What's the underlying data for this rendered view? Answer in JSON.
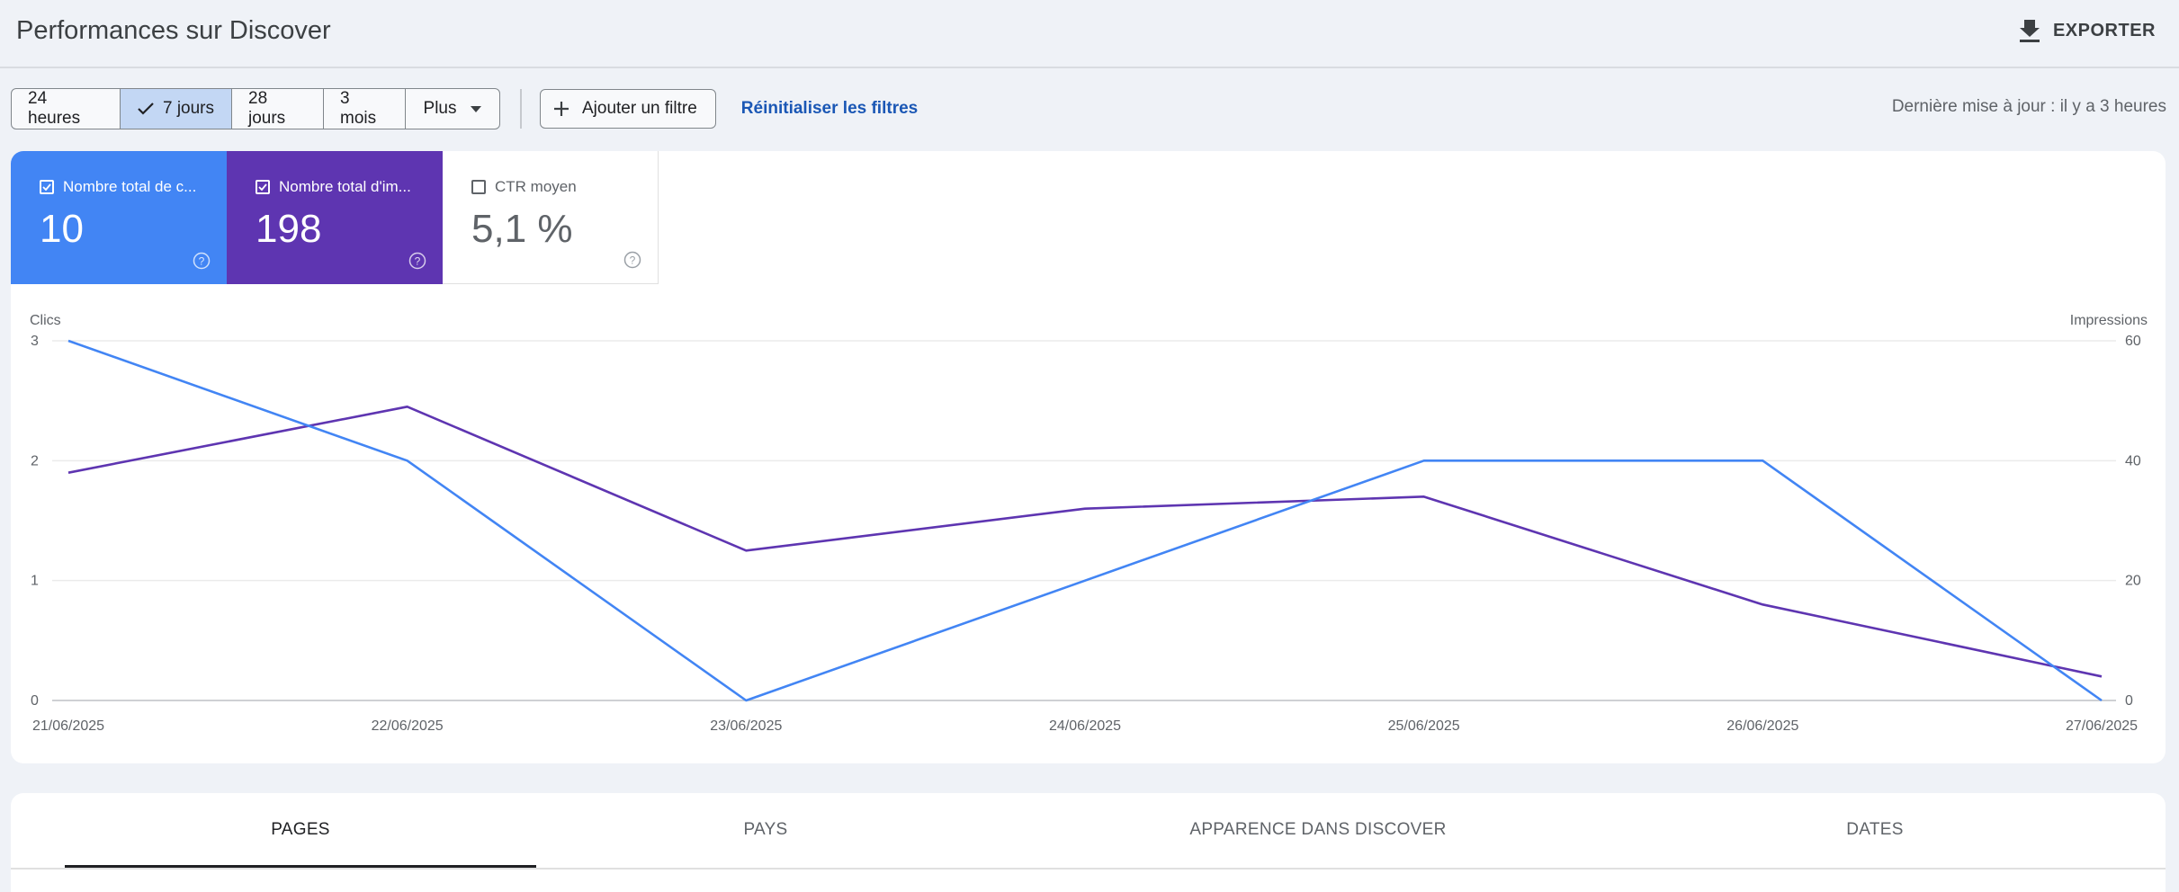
{
  "header": {
    "title": "Performances sur Discover",
    "export_label": "EXPORTER"
  },
  "filters": {
    "ranges": [
      {
        "label": "24 heures",
        "active": false
      },
      {
        "label": "7 jours",
        "active": true
      },
      {
        "label": "28 jours",
        "active": false
      },
      {
        "label": "3 mois",
        "active": false
      }
    ],
    "more_label": "Plus",
    "add_filter_label": "Ajouter un filtre",
    "reset_label": "Réinitialiser les filtres",
    "last_update": "Dernière mise à jour : il y a 3 heures"
  },
  "metrics": {
    "clicks": {
      "label": "Nombre total de c...",
      "value": "10",
      "checked": true,
      "color": "#4285f4"
    },
    "impressions": {
      "label": "Nombre total d'im...",
      "value": "198",
      "checked": true,
      "color": "#5e35b1"
    },
    "ctr": {
      "label": "CTR moyen",
      "value": "5,1 %",
      "checked": false
    }
  },
  "chart_data": {
    "type": "line",
    "x": [
      "21/06/2025",
      "22/06/2025",
      "23/06/2025",
      "24/06/2025",
      "25/06/2025",
      "26/06/2025",
      "27/06/2025"
    ],
    "left_axis": {
      "label": "Clics",
      "ticks": [
        "0",
        "1",
        "2",
        "3"
      ],
      "range": [
        0,
        3
      ]
    },
    "right_axis": {
      "label": "Impressions",
      "ticks": [
        "0",
        "20",
        "40",
        "60"
      ],
      "range": [
        0,
        60
      ]
    },
    "series": [
      {
        "name": "Clics",
        "axis": "left",
        "color": "#4285f4",
        "values": [
          3,
          2,
          0,
          1,
          2,
          2,
          0
        ]
      },
      {
        "name": "Impressions",
        "axis": "right",
        "color": "#5e35b1",
        "values": [
          38,
          49,
          25,
          32,
          34,
          16,
          4
        ]
      }
    ],
    "grid": true
  },
  "tabs": [
    {
      "label": "PAGES",
      "active": true
    },
    {
      "label": "PAYS",
      "active": false
    },
    {
      "label": "APPARENCE DANS DISCOVER",
      "active": false
    },
    {
      "label": "DATES",
      "active": false
    }
  ]
}
